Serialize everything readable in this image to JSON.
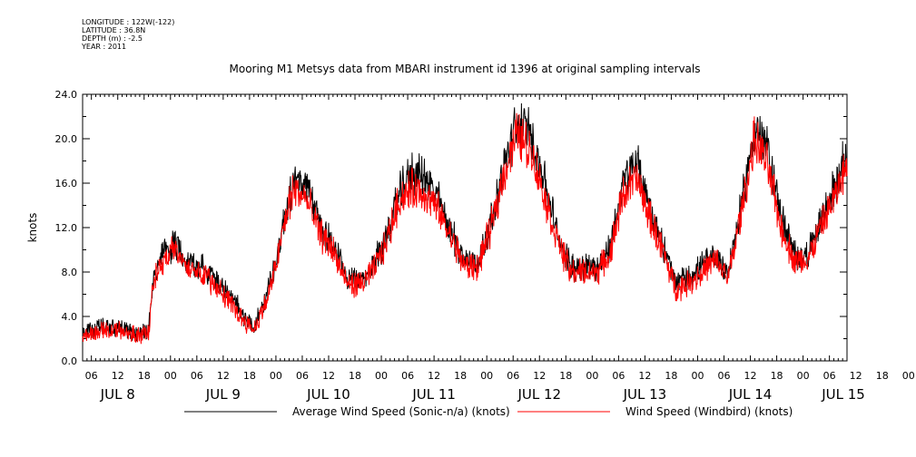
{
  "meta": {
    "longitude": "LONGITUDE : 122W(-122)",
    "latitude": "LATITUDE : 36.8N",
    "depth": "DEPTH (m) : -2.5",
    "year": "YEAR : 2011"
  },
  "chart_data": {
    "type": "line",
    "title": "Mooring M1 Metsys data from MBARI instrument id 1396 at original sampling intervals",
    "ylabel": "knots",
    "ylim": [
      0,
      24
    ],
    "yticks": [
      "0.0",
      "4.0",
      "8.0",
      "12.0",
      "16.0",
      "20.0",
      "24.0"
    ],
    "xlim_hours": [
      4,
      178
    ],
    "hour_ticks": [
      "06",
      "12",
      "18",
      "00",
      "06",
      "12",
      "18",
      "00",
      "06",
      "12",
      "18",
      "00",
      "06",
      "12",
      "18",
      "00",
      "06",
      "12",
      "18",
      "00",
      "06",
      "12",
      "18",
      "00",
      "06",
      "12",
      "18",
      "00",
      "06",
      "12",
      "18",
      "00"
    ],
    "day_labels": [
      "JUL 8",
      "JUL 9",
      "JUL 10",
      "JUL 11",
      "JUL 12",
      "JUL 13",
      "JUL 14",
      "JUL 15"
    ],
    "series": [
      {
        "name": "Average Wind Speed (Sonic-n/a) (knots)",
        "color": "#000000",
        "x_hours": [
          4,
          8,
          12,
          16,
          19,
          20,
          22,
          25,
          28,
          31,
          34,
          37,
          40,
          43,
          46,
          48,
          50,
          52,
          55,
          58,
          61,
          64,
          67,
          70,
          73,
          76,
          79,
          82,
          85,
          88,
          91,
          94,
          97,
          100,
          103,
          106,
          109,
          112,
          115,
          118,
          121,
          124,
          127,
          130,
          133,
          136,
          139,
          142,
          145,
          148,
          151,
          154,
          157,
          160,
          163,
          166,
          169,
          172,
          175,
          178
        ],
        "values": [
          2.5,
          3.0,
          3.0,
          2.5,
          2.8,
          7.0,
          9.5,
          10.5,
          9.0,
          8.5,
          7.5,
          6.0,
          4.5,
          3.0,
          6.0,
          9.0,
          13.0,
          16.5,
          15.5,
          12.5,
          10.5,
          7.5,
          7.0,
          8.5,
          11.0,
          15.0,
          17.0,
          16.5,
          14.5,
          11.5,
          9.0,
          9.0,
          12.5,
          17.5,
          21.5,
          20.5,
          16.5,
          11.5,
          8.5,
          8.5,
          8.5,
          10.0,
          16.0,
          18.0,
          14.0,
          10.5,
          7.0,
          7.5,
          8.5,
          9.5,
          8.0,
          14.0,
          21.0,
          19.0,
          13.0,
          9.5,
          9.5,
          12.5,
          15.5,
          18.5
        ]
      },
      {
        "name": "Wind Speed (Windbird) (knots)",
        "color": "#ff0000",
        "x_hours": [
          4,
          8,
          12,
          16,
          19,
          20,
          22,
          25,
          28,
          31,
          34,
          37,
          40,
          43,
          46,
          48,
          50,
          52,
          55,
          58,
          61,
          64,
          67,
          70,
          73,
          76,
          79,
          82,
          85,
          88,
          91,
          94,
          97,
          100,
          103,
          106,
          109,
          112,
          115,
          118,
          121,
          124,
          127,
          130,
          133,
          136,
          139,
          142,
          145,
          148,
          151,
          154,
          157,
          160,
          163,
          166,
          169,
          172,
          175,
          178
        ],
        "values": [
          2.3,
          2.7,
          2.8,
          2.3,
          2.5,
          6.8,
          9.0,
          10.0,
          8.5,
          8.0,
          7.0,
          5.5,
          4.0,
          2.8,
          5.5,
          8.5,
          12.5,
          15.5,
          14.5,
          11.5,
          10.0,
          7.0,
          6.8,
          8.0,
          10.5,
          14.5,
          15.5,
          15.0,
          13.5,
          11.0,
          8.5,
          8.5,
          12.0,
          17.0,
          20.5,
          19.0,
          15.0,
          11.0,
          8.0,
          8.0,
          8.0,
          9.5,
          15.0,
          16.5,
          13.0,
          10.0,
          6.5,
          7.0,
          8.0,
          9.0,
          7.5,
          13.5,
          20.0,
          17.5,
          12.0,
          9.0,
          9.0,
          12.0,
          14.5,
          17.5
        ]
      }
    ],
    "grid": false
  }
}
